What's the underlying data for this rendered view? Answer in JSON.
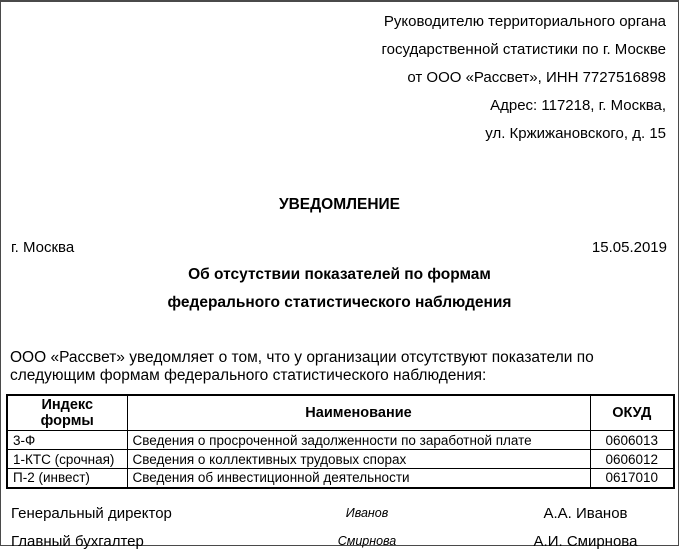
{
  "addressee": {
    "lines": [
      "Руководителю территориального органа",
      "государственной статистики по г. Москве",
      "от ООО «Рассвет», ИНН 7727516898",
      "Адрес: 117218, г. Москва,",
      "ул. Кржижановского, д. 15"
    ]
  },
  "title": "УВЕДОМЛЕНИЕ",
  "meta": {
    "city": "г. Москва",
    "date": "15.05.2019"
  },
  "subtitle": {
    "line1": "Об отсутствии показателей по формам",
    "line2": "федерального статистического наблюдения"
  },
  "body_paragraph": "ООО «Рассвет» уведомляет о том, что у организации отсутствуют показатели по следующим формам федерального статистического наблюдения:",
  "table": {
    "headers": [
      "Индекс формы",
      "Наименование",
      "ОКУД"
    ],
    "rows": [
      [
        "3-Ф",
        "Сведения о просроченной задолженности по заработной плате",
        "0606013"
      ],
      [
        "1-КТС (срочная)",
        "Сведения о коллективных трудовых спорах",
        "0606012"
      ],
      [
        "П-2 (инвест)",
        "Сведения об инвестиционной деятельности",
        "0617010"
      ]
    ]
  },
  "signatures": [
    {
      "position": "Генеральный директор",
      "signature": "Иванов",
      "name": "А.А. Иванов"
    },
    {
      "position": "Главный бухгалтер",
      "signature": "Смирнова",
      "name": "А.И. Смирнова"
    }
  ],
  "colors": {
    "page_border": "#4a4a4a",
    "table_border": "#000000",
    "text": "#000000",
    "background": "#ffffff"
  }
}
